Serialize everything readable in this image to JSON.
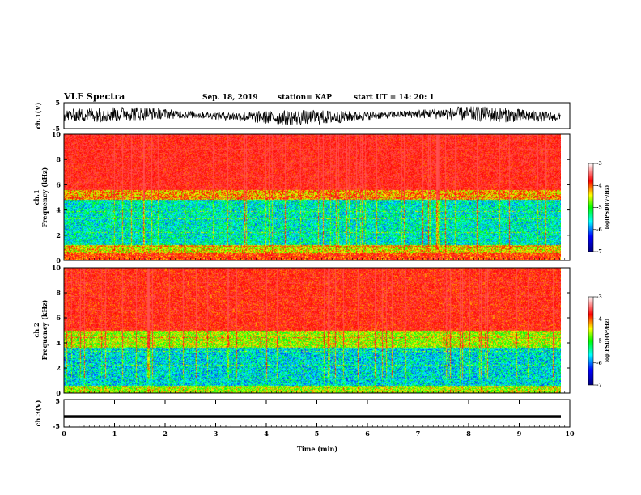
{
  "header": {
    "title": "VLF Spectra",
    "date": "Sep. 18, 2019",
    "station": "station= KAP",
    "start_time": "start  UT =   14: 20: 1"
  },
  "colors": {
    "spectrum": [
      "#000080",
      "#0000ff",
      "#00ffff",
      "#00ff00",
      "#ffff00",
      "#ff0000",
      "#ffffff"
    ],
    "axis": "#000000",
    "trace": "#000000"
  },
  "chart_data": [
    {
      "type": "line",
      "id": "ch1-waveform",
      "ylabel": "ch.1(V)",
      "ylim": [
        -5,
        5
      ],
      "yticks": [
        "5",
        "-5"
      ],
      "xlim": [
        0,
        10
      ],
      "description_values": "noisy waveform, amplitude about ±3 V"
    },
    {
      "type": "heatmap",
      "id": "ch1-spectrum",
      "ylabel_top": "ch.1",
      "ylabel": "Frequency (kHz)",
      "ylim": [
        0,
        10
      ],
      "yticks": [
        "10",
        "8",
        "6",
        "4",
        "2",
        "0"
      ],
      "xlim": [
        0,
        10
      ],
      "band_profile_kHz": [
        {
          "range": [
            0,
            0.6
          ],
          "level": -3.8
        },
        {
          "range": [
            0.6,
            1.2
          ],
          "level": -4.4
        },
        {
          "range": [
            1.2,
            4.8
          ],
          "level": -5.5
        },
        {
          "range": [
            4.8,
            5.6
          ],
          "level": -4.2
        },
        {
          "range": [
            5.6,
            10
          ],
          "level": -3.5
        }
      ],
      "colorbar": {
        "label": "log(PSD)(V²/Hz)",
        "range": [
          -7,
          -3
        ],
        "ticks": [
          "-3",
          "-4",
          "-5",
          "-6",
          "-7"
        ]
      }
    },
    {
      "type": "heatmap",
      "id": "ch2-spectrum",
      "ylabel_top": "ch.2",
      "ylabel": "Frequency (kHz)",
      "ylim": [
        0,
        10
      ],
      "yticks": [
        "10",
        "8",
        "6",
        "4",
        "2",
        "0"
      ],
      "xlim": [
        0,
        10
      ],
      "band_profile_kHz": [
        {
          "range": [
            0,
            0.6
          ],
          "level": -4.6
        },
        {
          "range": [
            0.6,
            3.6
          ],
          "level": -5.6
        },
        {
          "range": [
            3.6,
            5.0
          ],
          "level": -4.6
        },
        {
          "range": [
            5.0,
            10
          ],
          "level": -3.6
        }
      ],
      "colorbar": {
        "label": "log(PSD)(V²/Hz)",
        "range": [
          -7,
          -3
        ],
        "ticks": [
          "-3",
          "-4",
          "-5",
          "-6",
          "-7"
        ]
      }
    },
    {
      "type": "line",
      "id": "ch3-waveform",
      "ylabel": "ch.3(V)",
      "ylim": [
        -5,
        5
      ],
      "yticks": [
        "5",
        "-5"
      ],
      "xlim": [
        0,
        10
      ],
      "xlabel": "Time (min)",
      "xticks": [
        "0",
        "1",
        "2",
        "3",
        "4",
        "5",
        "6",
        "7",
        "8",
        "9",
        "10"
      ],
      "constant_value_V": -1.2
    }
  ]
}
